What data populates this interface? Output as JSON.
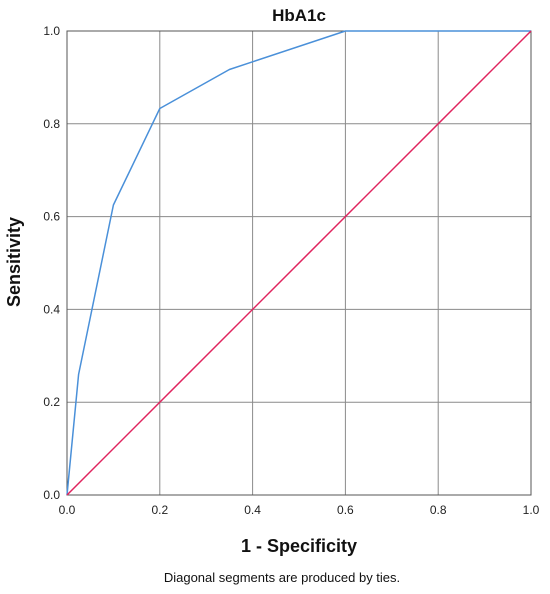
{
  "chart_data": {
    "type": "line",
    "title": "HbA1c",
    "xlabel": "1 - Specificity",
    "ylabel": "Sensitivity",
    "footnote": "Diagonal segments are produced by ties.",
    "xlim": [
      0.0,
      1.0
    ],
    "ylim": [
      0.0,
      1.0
    ],
    "xticks": [
      "0.0",
      "0.2",
      "0.4",
      "0.6",
      "0.8",
      "1.0"
    ],
    "yticks": [
      "0.0",
      "0.2",
      "0.4",
      "0.6",
      "0.8",
      "1.0"
    ],
    "grid": true,
    "series": [
      {
        "color": "#4a90d9",
        "x": [
          0.0,
          0.025,
          0.1,
          0.2,
          0.35,
          0.6,
          1.0
        ],
        "y": [
          0.0,
          0.26,
          0.625,
          0.833,
          0.917,
          1.0,
          1.0
        ]
      },
      {
        "color": "#e0245e",
        "x": [
          0.0,
          1.0
        ],
        "y": [
          0.0,
          1.0
        ]
      }
    ]
  }
}
